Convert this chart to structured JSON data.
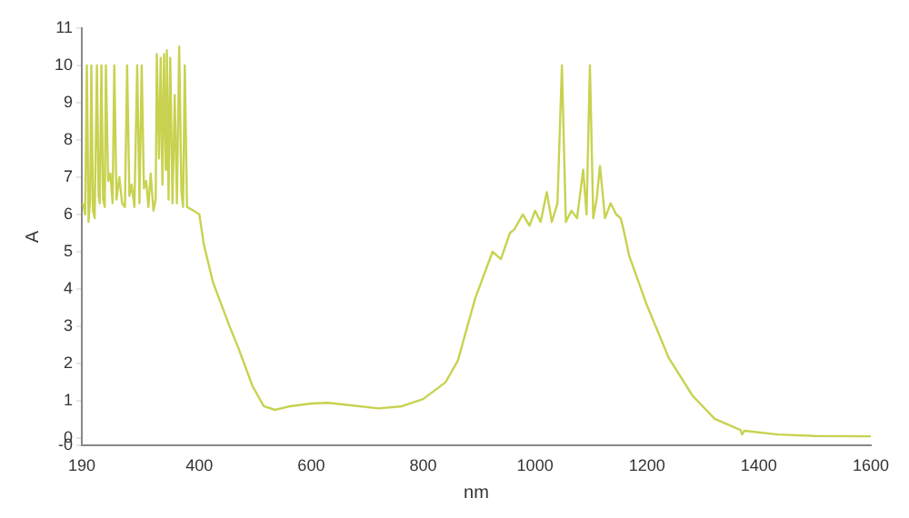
{
  "chart_data": {
    "type": "line",
    "xlabel": "nm",
    "ylabel": "A",
    "xlim": [
      190,
      1600
    ],
    "xticks": [
      190,
      400,
      600,
      800,
      1000,
      1200,
      1400,
      1600
    ],
    "ylim": [
      -0.2,
      11
    ],
    "yticks": [
      {
        "value": -0.2,
        "label": "-0"
      },
      0,
      1,
      2,
      3,
      4,
      5,
      6,
      7,
      8,
      9,
      10,
      11
    ],
    "grid": false,
    "legend": false,
    "marker": "none",
    "line_style": "solid",
    "series": [
      {
        "color": "#c8d250",
        "x": [
          192,
          196,
          199,
          202,
          205,
          207,
          210,
          213,
          217,
          220,
          222,
          225,
          228,
          231,
          233,
          237,
          241,
          245,
          248,
          252,
          257,
          262,
          267,
          271,
          275,
          279,
          284,
          289,
          293,
          297,
          301,
          305,
          309,
          313,
          318,
          322,
          324,
          328,
          331,
          334,
          337,
          340,
          342,
          345,
          348,
          352,
          356,
          360,
          364,
          368,
          371,
          374,
          378,
          390,
          400,
          408,
          424,
          454,
          469,
          495,
          515,
          535,
          560,
          600,
          630,
          660,
          720,
          760,
          800,
          840,
          862,
          893,
          924,
          939,
          955,
          963,
          978,
          990,
          1000,
          1010,
          1021,
          1030,
          1040,
          1048,
          1055,
          1065,
          1075,
          1086,
          1092,
          1098,
          1104,
          1110,
          1116,
          1125,
          1135,
          1145,
          1153,
          1158,
          1168,
          1199,
          1239,
          1281,
          1321,
          1367,
          1370,
          1374,
          1434,
          1500,
          1600
        ],
        "values": [
          6.3,
          6.0,
          10,
          5.8,
          6.4,
          10,
          6.1,
          5.9,
          10,
          6.5,
          6.3,
          10,
          6.4,
          6.2,
          10,
          6.9,
          7.1,
          6.3,
          10,
          6.4,
          7.0,
          6.3,
          6.2,
          10,
          6.5,
          6.8,
          6.2,
          10,
          6.3,
          10,
          6.7,
          6.9,
          6.2,
          7.1,
          6.1,
          6.4,
          10.3,
          7.5,
          10.2,
          6.8,
          10.3,
          7.2,
          10.4,
          6.4,
          10.2,
          6.3,
          9.2,
          6.3,
          10.5,
          6.6,
          6.2,
          10,
          6.2,
          6.1,
          6.0,
          5.2,
          4.2,
          3.0,
          2.45,
          1.4,
          0.86,
          0.76,
          0.85,
          0.93,
          0.95,
          0.9,
          0.8,
          0.85,
          1.05,
          1.5,
          2.08,
          3.75,
          5.0,
          4.8,
          5.5,
          5.6,
          6.0,
          5.7,
          6.1,
          5.8,
          6.6,
          5.8,
          6.3,
          10,
          5.8,
          6.1,
          5.9,
          7.2,
          6.0,
          10,
          5.9,
          6.4,
          7.3,
          5.9,
          6.3,
          6.0,
          5.9,
          5.6,
          4.9,
          3.6,
          2.15,
          1.15,
          0.52,
          0.22,
          0.1,
          0.2,
          0.1,
          0.06,
          0.05
        ]
      }
    ]
  }
}
